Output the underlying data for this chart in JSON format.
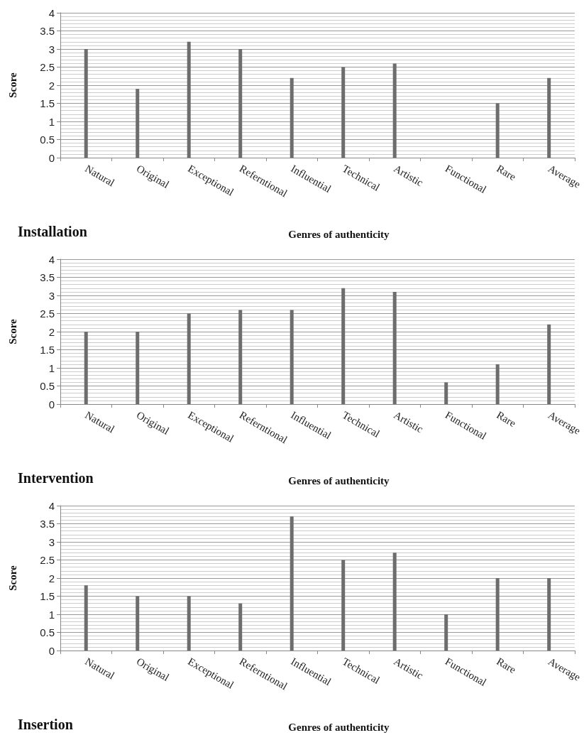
{
  "chart_data": [
    {
      "type": "bar",
      "title": "Installation",
      "xlabel": "Genres of authenticity",
      "ylabel": "Score",
      "categories": [
        "Natural",
        "Original",
        "Exceptional",
        "Referntional",
        "Influential",
        "Technical",
        "Artistic",
        "Functional",
        "Rare",
        "Average"
      ],
      "values": [
        3,
        1.9,
        3.2,
        3,
        2.2,
        2.5,
        2.6,
        0,
        1.5,
        2.2
      ],
      "color": "#6d6d6d",
      "ylim": [
        0,
        4
      ],
      "yticks": [
        0,
        0.5,
        1,
        1.5,
        2,
        2.5,
        3,
        3.5,
        4
      ],
      "grid": "y"
    },
    {
      "type": "bar",
      "title": "Intervention",
      "xlabel": "Genres of authenticity",
      "ylabel": "Score",
      "categories": [
        "Natural",
        "Original",
        "Exceptional",
        "Referntional",
        "Influential",
        "Technical",
        "Artistic",
        "Functional",
        "Rare",
        "Average"
      ],
      "values": [
        2,
        2,
        2.5,
        2.6,
        2.6,
        3.2,
        3.1,
        0.6,
        1.1,
        2.2
      ],
      "color": "#6d6d6d",
      "ylim": [
        0,
        4
      ],
      "yticks": [
        0,
        0.5,
        1,
        1.5,
        2,
        2.5,
        3,
        3.5,
        4
      ],
      "grid": "y"
    },
    {
      "type": "bar",
      "title": "Insertion",
      "xlabel": "Genres of authenticity",
      "ylabel": "Score",
      "categories": [
        "Natural",
        "Original",
        "Exceptional",
        "Referntional",
        "Influential",
        "Technical",
        "Artistic",
        "Functional",
        "Rare",
        "Average"
      ],
      "values": [
        1.8,
        1.5,
        1.5,
        1.3,
        3.7,
        2.5,
        2.7,
        1,
        2,
        2
      ],
      "color": "#6d6d6d",
      "ylim": [
        0,
        4
      ],
      "yticks": [
        0,
        0.5,
        1,
        1.5,
        2,
        2.5,
        3,
        3.5,
        4
      ],
      "grid": "y"
    }
  ]
}
